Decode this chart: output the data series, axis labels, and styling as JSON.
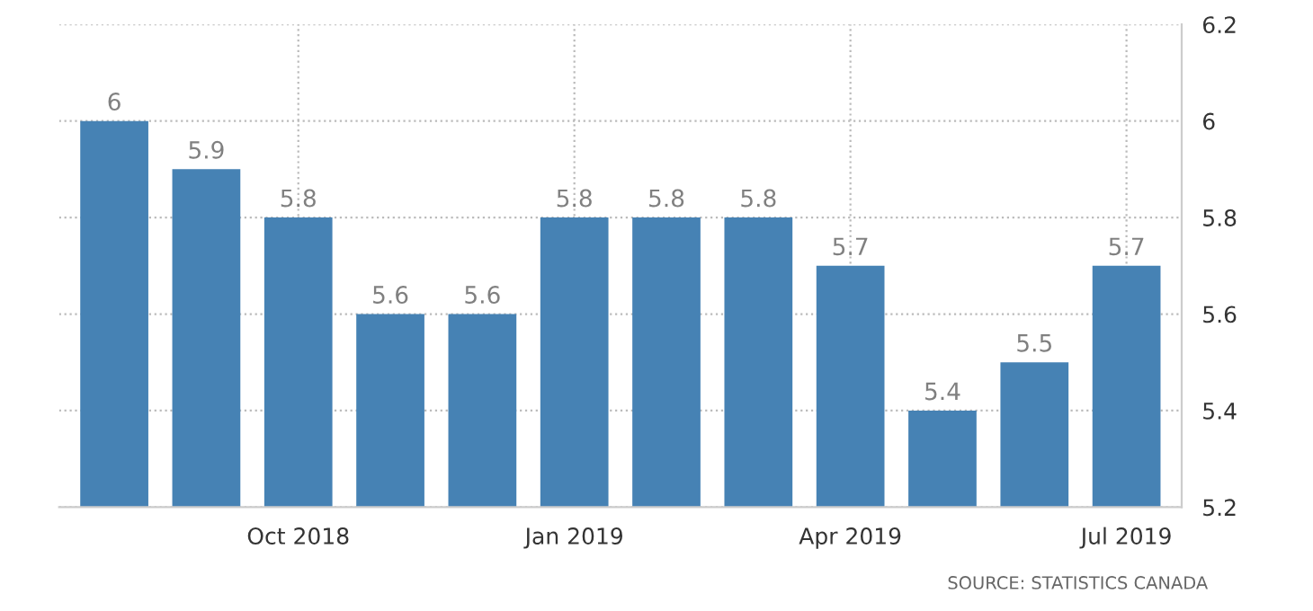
{
  "chart_data": {
    "type": "bar",
    "categories": [
      null,
      null,
      "Oct 2018",
      null,
      null,
      "Jan 2019",
      null,
      null,
      "Apr 2019",
      null,
      null,
      "Jul 2019"
    ],
    "values": [
      6,
      5.9,
      5.8,
      5.6,
      5.6,
      5.8,
      5.8,
      5.8,
      5.7,
      5.4,
      5.5,
      5.7
    ],
    "color": "#4682b4",
    "ylim": [
      5.2,
      6.2
    ],
    "yticks": [
      5.2,
      5.4,
      5.6,
      5.8,
      6,
      6.2
    ],
    "grid": true,
    "data_labels": true,
    "annotations": [
      "SOURCE: STATISTICS CANADA"
    ]
  }
}
